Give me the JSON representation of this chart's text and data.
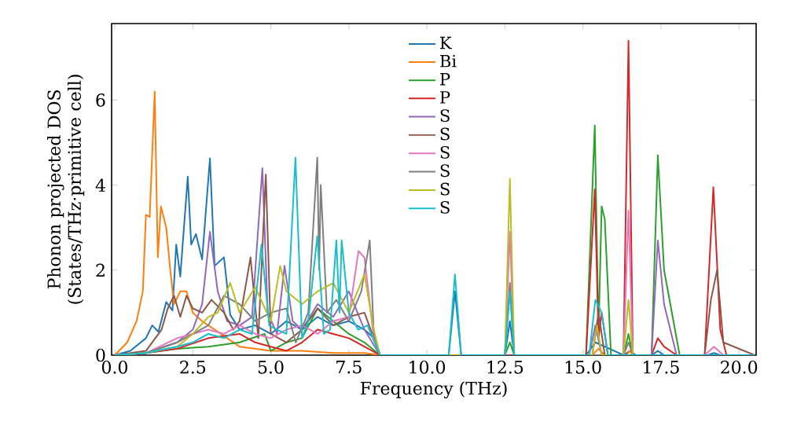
{
  "chart_data": {
    "type": "line",
    "xlabel": "Frequency (THz)",
    "ylabel": "Phonon projected DOS (States/THz·primitive cell)",
    "xlim": [
      -0.1,
      20.55
    ],
    "ylim": [
      0,
      7.8
    ],
    "xticks": [
      {
        "value": 0,
        "label": "0.0"
      },
      2.5,
      {
        "value": 5,
        "label": "5.0"
      },
      7.5,
      {
        "value": 10,
        "label": "10.0"
      },
      12.5,
      {
        "value": 15,
        "label": "15.0"
      },
      17.5,
      {
        "value": 20,
        "label": "20.0"
      }
    ],
    "yticks": [
      0,
      2,
      4,
      6
    ],
    "legend": "top",
    "series": [
      {
        "name": "K",
        "color": "#1f77b4",
        "x": [
          0,
          0.5,
          1.0,
          1.2,
          1.4,
          1.65,
          1.85,
          1.97,
          2.1,
          2.34,
          2.45,
          2.6,
          2.8,
          3.05,
          3.2,
          3.5,
          3.7,
          4.0,
          4.5,
          5.0,
          5.5,
          6.0,
          6.5,
          7.0,
          7.5,
          8.0,
          8.3,
          8.5,
          10.7,
          10.9,
          11.1,
          12.5,
          12.66,
          12.8,
          15.1,
          15.4,
          15.7,
          16.3,
          16.5,
          16.7,
          17.2,
          17.4,
          17.6,
          19.0,
          19.2,
          19.4,
          20.5
        ],
        "values": [
          0,
          0.1,
          0.4,
          0.7,
          0.55,
          1.25,
          1.05,
          2.6,
          1.85,
          4.2,
          2.6,
          2.85,
          2.25,
          4.63,
          2.1,
          2.3,
          0.95,
          0.6,
          0.7,
          0.5,
          0.8,
          0.6,
          0.9,
          0.7,
          0.8,
          0.6,
          0.4,
          0,
          0,
          1.5,
          0,
          0,
          0.8,
          0,
          0,
          0.3,
          0.2,
          0,
          0.1,
          0,
          0,
          0.1,
          0,
          0,
          0.05,
          0,
          0
        ]
      },
      {
        "name": "Bi",
        "color": "#ff7f0e",
        "x": [
          0,
          0.4,
          0.7,
          0.9,
          1.0,
          1.12,
          1.28,
          1.38,
          1.48,
          1.65,
          1.78,
          1.9,
          2.1,
          2.3,
          2.5,
          2.8,
          3.2,
          3.6,
          4.0,
          5.0,
          6.0,
          7.0,
          8.0,
          8.5,
          15.3,
          15.5,
          15.7,
          16.4,
          16.5,
          16.6,
          20.5
        ],
        "values": [
          0,
          0.3,
          0.8,
          1.5,
          3.3,
          3.25,
          6.2,
          2.3,
          3.5,
          3.0,
          2.0,
          1.2,
          1.5,
          1.5,
          1.0,
          0.8,
          0.6,
          0.4,
          0.2,
          0.1,
          0.1,
          0.05,
          0.05,
          0,
          0,
          0.15,
          0,
          0,
          0.1,
          0,
          0
        ]
      },
      {
        "name": "P",
        "color": "#2ca02c",
        "x": [
          0,
          1,
          2,
          3,
          4,
          4.8,
          5.0,
          5.5,
          6,
          6.5,
          7,
          7.5,
          8,
          8.5,
          12.5,
          12.66,
          12.8,
          15.1,
          15.38,
          15.5,
          15.6,
          15.7,
          15.9,
          16.3,
          16.46,
          16.6,
          17.2,
          17.4,
          17.6,
          17.9,
          18.1,
          20.5
        ],
        "values": [
          0,
          0.05,
          0.15,
          0.2,
          0.3,
          0.5,
          0.1,
          0.3,
          0.4,
          1.1,
          0.8,
          0.5,
          0.3,
          0,
          0,
          0.3,
          0,
          0,
          5.4,
          0.5,
          3.5,
          3.2,
          0,
          0,
          0.5,
          0,
          0,
          4.7,
          2.0,
          0.8,
          0,
          0
        ]
      },
      {
        "name": "P",
        "color": "#d62728",
        "x": [
          0,
          1,
          2,
          3,
          4,
          4.5,
          5,
          5.5,
          6,
          6.5,
          7,
          7.5,
          8,
          8.5,
          15.1,
          15.38,
          15.5,
          15.6,
          15.8,
          16.3,
          16.46,
          16.6,
          17.2,
          17.4,
          17.6,
          18,
          18.9,
          19.18,
          19.4,
          19.6,
          20.5
        ],
        "values": [
          0,
          0.05,
          0.15,
          0.4,
          0.5,
          0.3,
          0.2,
          0.1,
          0.3,
          0.6,
          0.5,
          0.4,
          0.2,
          0,
          0,
          3.9,
          0.4,
          1.0,
          0,
          0,
          7.4,
          0,
          0,
          0.4,
          0.2,
          0,
          0,
          3.95,
          0.6,
          0,
          0
        ]
      },
      {
        "name": "S",
        "color": "#9467bd",
        "x": [
          0,
          1,
          2,
          2.5,
          2.8,
          3.05,
          3.3,
          3.6,
          4.0,
          4.4,
          4.73,
          4.9,
          5.2,
          5.44,
          5.7,
          6.0,
          6.5,
          7.0,
          7.5,
          8.0,
          8.5,
          15.2,
          15.4,
          15.6,
          17.2,
          17.4,
          17.6,
          18,
          20.5
        ],
        "values": [
          0,
          0.05,
          0.3,
          0.6,
          1.2,
          2.9,
          1.5,
          0.8,
          0.7,
          0.9,
          4.4,
          1.0,
          0.5,
          2.1,
          0.8,
          0.6,
          1.2,
          0.9,
          1.5,
          0.6,
          0,
          0,
          0.7,
          0,
          0,
          2.7,
          1.2,
          0,
          0
        ]
      },
      {
        "name": "S",
        "color": "#8c564b",
        "x": [
          0,
          1,
          1.5,
          1.7,
          1.9,
          2.1,
          2.3,
          2.5,
          2.8,
          3.1,
          3.5,
          3.8,
          4.0,
          4.35,
          4.6,
          4.84,
          5.0,
          5.5,
          6.0,
          6.5,
          7.0,
          7.5,
          8.0,
          8.5,
          15.3,
          15.5,
          15.7,
          18.9,
          19.1,
          19.3,
          19.5,
          20.5
        ],
        "values": [
          0,
          0.1,
          0.6,
          1.1,
          1.4,
          0.9,
          1.4,
          1.1,
          1.0,
          1.3,
          1.0,
          0.6,
          0.8,
          2.3,
          0.4,
          4.25,
          0.5,
          0.3,
          0.6,
          1.1,
          0.7,
          0.9,
          1.0,
          0,
          0,
          1.0,
          0,
          0,
          1.3,
          2.0,
          0.3,
          0
        ]
      },
      {
        "name": "S",
        "color": "#e377c2",
        "x": [
          0,
          1,
          2,
          2.5,
          3,
          3.5,
          4,
          4.5,
          5,
          5.5,
          6,
          6.5,
          7,
          7.5,
          7.81,
          8,
          8.3,
          8.5,
          12.5,
          12.66,
          12.8,
          16.3,
          16.46,
          16.6,
          18.9,
          19.2,
          19.5,
          20.5
        ],
        "values": [
          0,
          0.05,
          0.4,
          0.5,
          0.6,
          0.5,
          0.7,
          0.5,
          0.4,
          0.6,
          0.7,
          0.5,
          0.8,
          0.9,
          2.45,
          2.3,
          0.4,
          0,
          0,
          2.9,
          0,
          0,
          3.4,
          0,
          0,
          0.2,
          0,
          0
        ]
      },
      {
        "name": "S",
        "color": "#7f7f7f",
        "x": [
          0,
          1,
          2,
          3,
          3.5,
          4,
          4.5,
          5,
          5.5,
          5.8,
          6.2,
          6.49,
          6.55,
          6.6,
          6.8,
          7.1,
          7.5,
          7.9,
          8.17,
          8.3,
          8.5,
          12.5,
          12.66,
          12.8,
          16.3,
          16.46,
          16.6,
          20.5
        ],
        "values": [
          0,
          0.05,
          0.3,
          0.7,
          1.4,
          1.2,
          0.8,
          1.0,
          1.1,
          0.3,
          1.0,
          4.65,
          2.0,
          4.0,
          1.0,
          1.3,
          0.8,
          1.5,
          2.7,
          0.5,
          0,
          0,
          1.7,
          0,
          0,
          0.3,
          0,
          0
        ]
      },
      {
        "name": "S",
        "color": "#bcbd22",
        "x": [
          0,
          1,
          2,
          2.5,
          3,
          3.3,
          3.7,
          4,
          4.5,
          5,
          5.3,
          5.5,
          6,
          6.5,
          7,
          7.5,
          8.0,
          8.3,
          8.5,
          12.5,
          12.66,
          12.8,
          15.3,
          15.45,
          15.6,
          16.3,
          16.46,
          16.6,
          20.5
        ],
        "values": [
          0,
          0.05,
          0.2,
          0.5,
          0.9,
          1.0,
          1.7,
          1.0,
          1.6,
          0.8,
          2.1,
          1.5,
          1.2,
          1.5,
          1.7,
          1.0,
          1.9,
          0.6,
          0,
          0,
          4.15,
          0,
          0,
          0.7,
          0,
          0,
          1.3,
          0,
          0
        ]
      },
      {
        "name": "S",
        "color": "#17becf",
        "x": [
          0,
          1,
          2,
          2.5,
          3,
          3.5,
          4,
          4.4,
          4.7,
          4.95,
          5.2,
          5.5,
          5.79,
          6.0,
          6.2,
          6.49,
          6.7,
          6.9,
          7.1,
          7.2,
          7.27,
          7.5,
          7.8,
          8.1,
          8.5,
          10.7,
          10.9,
          11.1,
          12.5,
          12.66,
          12.8,
          15.2,
          15.4,
          15.6,
          15.8,
          20.5
        ],
        "values": [
          0,
          0.05,
          0.2,
          0.3,
          0.5,
          0.4,
          0.6,
          0.5,
          2.6,
          0.7,
          0.6,
          0.5,
          4.65,
          0.4,
          0.8,
          2.8,
          0.5,
          0.6,
          2.7,
          1.0,
          2.7,
          1.0,
          0.6,
          0.7,
          0,
          0,
          1.9,
          0,
          0,
          1.5,
          0,
          0,
          1.3,
          1.0,
          0,
          0
        ]
      }
    ]
  }
}
